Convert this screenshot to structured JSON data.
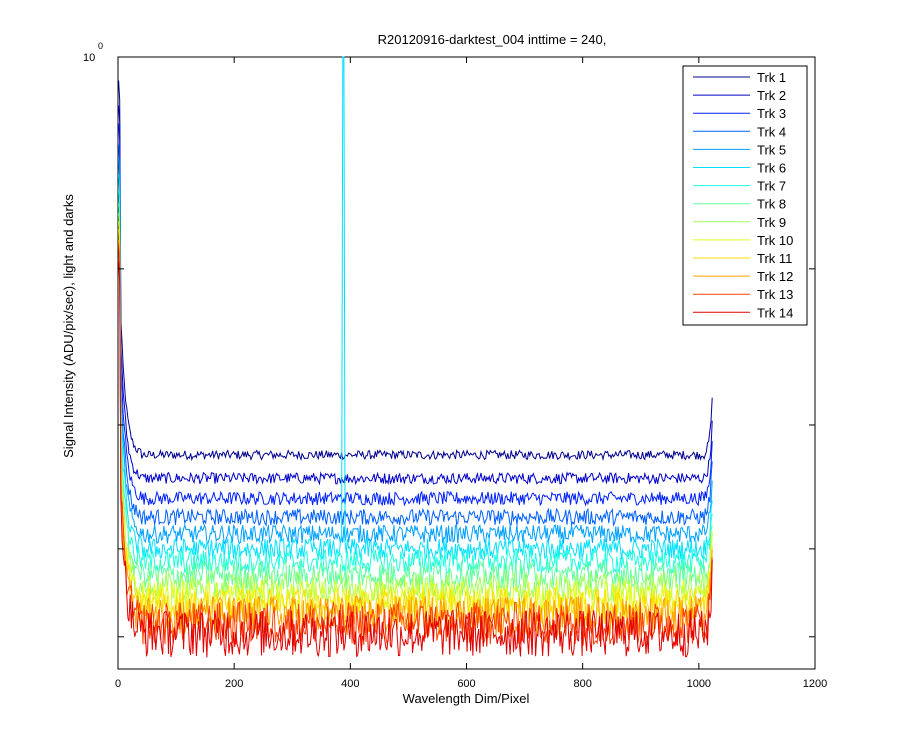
{
  "chart_data": {
    "type": "line",
    "title": "R20120916-darktest_004 inttime = 240,",
    "xlabel": "Wavelength Dim/Pixel",
    "ylabel": "Signal Intensity (ADU/pix/sec), light and darks",
    "xlim": [
      0,
      1200
    ],
    "x_ticks": [
      "0",
      "200",
      "400",
      "600",
      "800",
      "1000",
      "1200"
    ],
    "x_tick_values": [
      0,
      200,
      400,
      600,
      800,
      1000,
      1200
    ],
    "y_scale": "log",
    "y_top_label_base": "10",
    "y_top_label_exp": "0",
    "grid": false,
    "legend_position": "top-right",
    "x_range": [
      1,
      1024
    ],
    "series": [
      {
        "name": "Trk 1",
        "color": "#00008F",
        "baseline": 0.272,
        "noise": 0.004
      },
      {
        "name": "Trk 2",
        "color": "#0000C8",
        "baseline": 0.252,
        "noise": 0.004
      },
      {
        "name": "Trk 3",
        "color": "#0020FF",
        "baseline": 0.236,
        "noise": 0.004
      },
      {
        "name": "Trk 4",
        "color": "#0060FF",
        "baseline": 0.222,
        "noise": 0.004
      },
      {
        "name": "Trk 5",
        "color": "#00A0FF",
        "baseline": 0.21,
        "noise": 0.004
      },
      {
        "name": "Trk 6",
        "color": "#00E0FF",
        "baseline": 0.2,
        "noise": 0.004,
        "spike": {
          "x": 388,
          "value": 1.0
        }
      },
      {
        "name": "Trk 7",
        "color": "#20FFDF",
        "baseline": 0.192,
        "noise": 0.004
      },
      {
        "name": "Trk 8",
        "color": "#60FF9F",
        "baseline": 0.184,
        "noise": 0.004
      },
      {
        "name": "Trk 9",
        "color": "#A0FF60",
        "baseline": 0.177,
        "noise": 0.004
      },
      {
        "name": "Trk 10",
        "color": "#E0FF20",
        "baseline": 0.171,
        "noise": 0.004
      },
      {
        "name": "Trk 11",
        "color": "#FFDF00",
        "baseline": 0.166,
        "noise": 0.004
      },
      {
        "name": "Trk 12",
        "color": "#FF9F00",
        "baseline": 0.161,
        "noise": 0.004
      },
      {
        "name": "Trk 13",
        "color": "#FF4000",
        "baseline": 0.157,
        "noise": 0.004
      },
      {
        "name": "Trk 14",
        "color": "#E00000",
        "baseline": 0.152,
        "noise": 0.004
      }
    ]
  }
}
